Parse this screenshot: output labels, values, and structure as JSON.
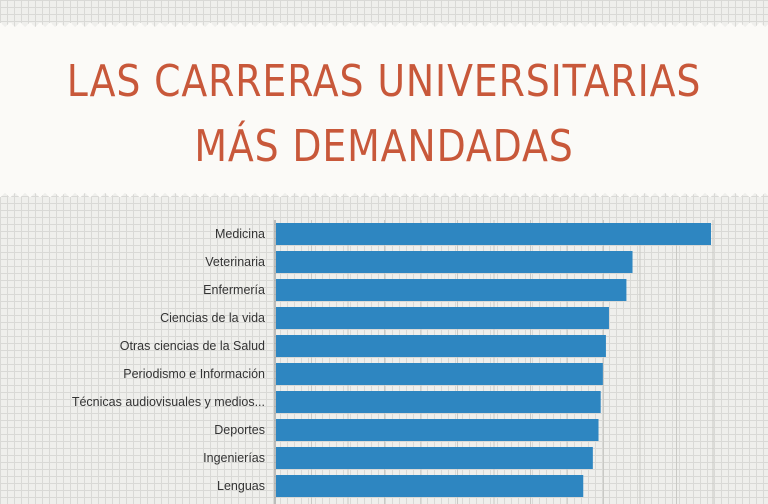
{
  "title": {
    "line1": "LAS CARRERAS UNIVERSITARIAS",
    "line2": "MÁS DEMANDADAS"
  },
  "colors": {
    "title": "#c8583a",
    "bar": "#2e86c1",
    "banner": "#fbfaf7",
    "background": "#efefec"
  },
  "chart_data": {
    "type": "bar",
    "orientation": "horizontal",
    "categories": [
      "Medicina",
      "Veterinaria",
      "Enfermería",
      "Ciencias de la vida",
      "Otras ciencias de la Salud",
      "Periodismo e Información",
      "Técnicas audiovisuales y medios...",
      "Deportes",
      "Ingenierías",
      "Lenguas"
    ],
    "values": [
      100,
      82,
      80.6,
      76.6,
      75.9,
      75.2,
      74.7,
      74.2,
      72.9,
      70.7
    ],
    "xlim": [
      0,
      100
    ],
    "grid": true,
    "title": "",
    "xlabel": "",
    "ylabel": ""
  }
}
